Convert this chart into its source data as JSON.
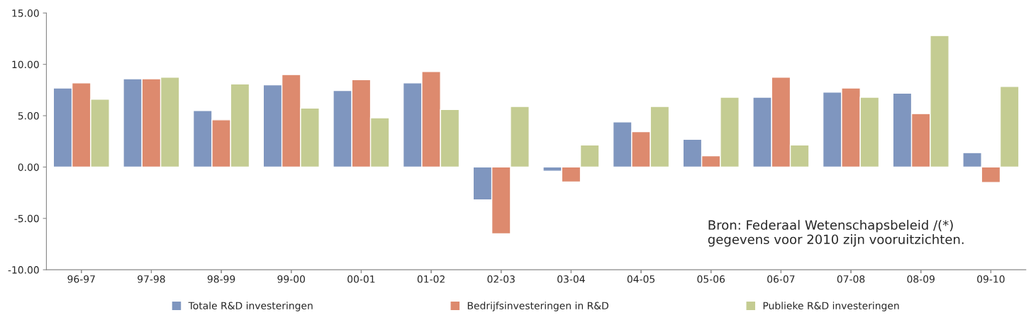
{
  "chart_data": {
    "type": "bar",
    "categories": [
      "96-97",
      "97-98",
      "98-99",
      "99-00",
      "00-01",
      "01-02",
      "02-03",
      "03-04",
      "04-05",
      "05-06",
      "06-07",
      "07-08",
      "08-09",
      "09-10"
    ],
    "series": [
      {
        "name": "Totale R&D investeringen",
        "color": "#7f96bf",
        "values": [
          7.7,
          8.6,
          5.5,
          8.0,
          7.45,
          8.2,
          -3.2,
          -0.4,
          4.4,
          2.7,
          6.8,
          7.3,
          7.2,
          1.4
        ]
      },
      {
        "name": "Bedrijfsinvesteringen in R&D",
        "color": "#dd8a6e",
        "values": [
          8.2,
          8.6,
          4.6,
          9.0,
          8.5,
          9.3,
          -6.5,
          -1.45,
          3.45,
          1.1,
          8.75,
          7.7,
          5.2,
          -1.5
        ]
      },
      {
        "name": "Publieke R&D investeringen",
        "color": "#c4cc92",
        "values": [
          6.6,
          8.75,
          8.1,
          5.75,
          4.8,
          5.6,
          5.9,
          2.15,
          5.9,
          6.8,
          2.15,
          6.8,
          12.8,
          7.85
        ]
      }
    ],
    "ylim": [
      -10,
      15
    ],
    "yticks": [
      {
        "value": -10,
        "label": "-10.00"
      },
      {
        "value": -5,
        "label": "-5.00"
      },
      {
        "value": 0,
        "label": "0.00"
      },
      {
        "value": 5,
        "label": "5.00"
      },
      {
        "value": 10,
        "label": "10.00"
      },
      {
        "value": 15,
        "label": "15.00"
      }
    ],
    "grid": false,
    "legend": "bottom",
    "annotations": [
      "Bron: Federaal Wetenschapsbeleid /(*)\ngegevens voor 2010 zijn vooruitzichten."
    ]
  }
}
